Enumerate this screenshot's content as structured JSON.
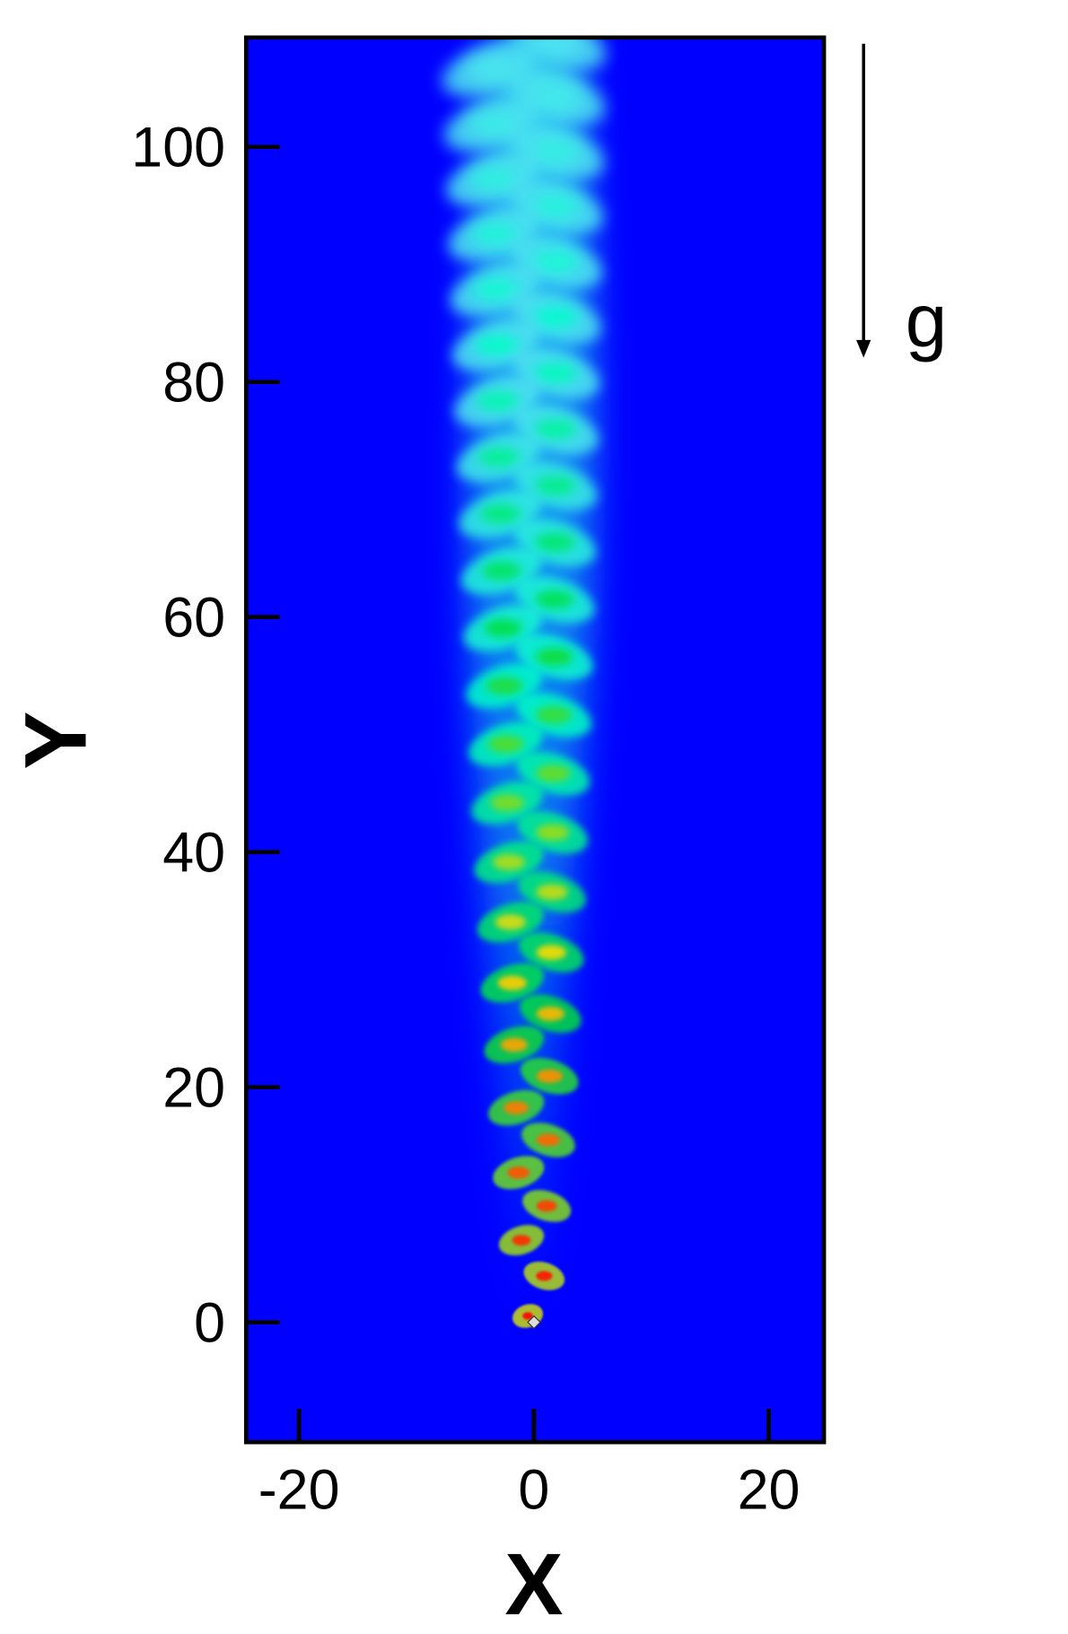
{
  "chart_data": {
    "type": "contour",
    "x_label": "X",
    "y_label": "Y",
    "annotation": "g",
    "xlim": [
      -24.5,
      24.7
    ],
    "ylim": [
      -10.2,
      109.3
    ],
    "xticks": [
      -20,
      0,
      20
    ],
    "yticks": [
      0,
      20,
      40,
      60,
      80,
      100
    ],
    "background_color": "#0000ff"
  }
}
